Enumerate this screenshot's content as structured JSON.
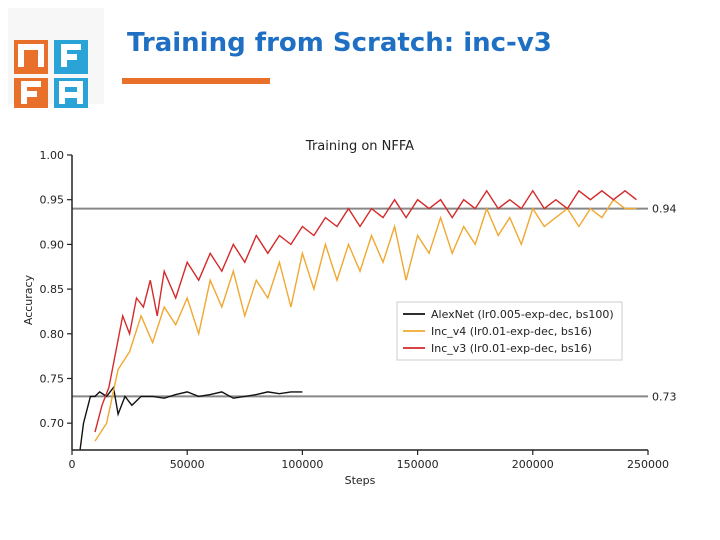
{
  "slide": {
    "title": "Training from Scratch: inc-v3",
    "accent_color": "#e8702a",
    "title_color": "#1f6fc2",
    "logo": {
      "text": "NFFA",
      "colors": [
        "#e8702a",
        "#2aa3d6"
      ]
    }
  },
  "chart_data": {
    "type": "line",
    "title": "Training on NFFA",
    "xlabel": "Steps",
    "ylabel": "Accuracy",
    "xlim": [
      0,
      250000
    ],
    "ylim": [
      0.67,
      1.0
    ],
    "x_ticks": [
      "0",
      "50000",
      "100000",
      "150000",
      "200000",
      "250000"
    ],
    "y_ticks": [
      "0.70",
      "0.75",
      "0.80",
      "0.85",
      "0.90",
      "0.95",
      "1.00"
    ],
    "legend_position": "center-right",
    "series": [
      {
        "name": "AlexNet (lr0.005-exp-dec, bs100)",
        "color": "#111111",
        "x": [
          2000,
          5000,
          8000,
          10000,
          12000,
          15000,
          18000,
          20000,
          23000,
          26000,
          30000,
          35000,
          40000,
          45000,
          50000,
          55000,
          60000,
          65000,
          70000,
          75000,
          80000,
          85000,
          90000,
          95000,
          100000
        ],
        "y": [
          0.64,
          0.7,
          0.73,
          0.73,
          0.735,
          0.73,
          0.74,
          0.71,
          0.73,
          0.72,
          0.73,
          0.73,
          0.728,
          0.732,
          0.735,
          0.73,
          0.732,
          0.735,
          0.728,
          0.73,
          0.732,
          0.735,
          0.733,
          0.735,
          0.735
        ]
      },
      {
        "name": "Inc_v4 (lr0.01-exp-dec, bs16)",
        "color": "#f0a830",
        "x": [
          10000,
          15000,
          20000,
          25000,
          30000,
          35000,
          40000,
          45000,
          50000,
          55000,
          60000,
          65000,
          70000,
          75000,
          80000,
          85000,
          90000,
          95000,
          100000,
          105000,
          110000,
          115000,
          120000,
          125000,
          130000,
          135000,
          140000,
          145000,
          150000,
          155000,
          160000,
          165000,
          170000,
          175000,
          180000,
          185000,
          190000,
          195000,
          200000,
          205000,
          210000,
          215000,
          220000,
          225000,
          230000,
          235000,
          240000,
          245000
        ],
        "y": [
          0.68,
          0.7,
          0.76,
          0.78,
          0.82,
          0.79,
          0.83,
          0.81,
          0.84,
          0.8,
          0.86,
          0.83,
          0.87,
          0.82,
          0.86,
          0.84,
          0.88,
          0.83,
          0.89,
          0.85,
          0.9,
          0.86,
          0.9,
          0.87,
          0.91,
          0.88,
          0.92,
          0.86,
          0.91,
          0.89,
          0.93,
          0.89,
          0.92,
          0.9,
          0.94,
          0.91,
          0.93,
          0.9,
          0.94,
          0.92,
          0.93,
          0.94,
          0.92,
          0.94,
          0.93,
          0.95,
          0.94,
          0.94
        ]
      },
      {
        "name": "Inc_v3 (lr0.01-exp-dec, bs16)",
        "color": "#d42a2a",
        "x": [
          10000,
          13000,
          16000,
          19000,
          22000,
          25000,
          28000,
          31000,
          34000,
          37000,
          40000,
          45000,
          50000,
          55000,
          60000,
          65000,
          70000,
          75000,
          80000,
          85000,
          90000,
          95000,
          100000,
          105000,
          110000,
          115000,
          120000,
          125000,
          130000,
          135000,
          140000,
          145000,
          150000,
          155000,
          160000,
          165000,
          170000,
          175000,
          180000,
          185000,
          190000,
          195000,
          200000,
          205000,
          210000,
          215000,
          220000,
          225000,
          230000,
          235000,
          240000,
          245000
        ],
        "y": [
          0.69,
          0.72,
          0.74,
          0.78,
          0.82,
          0.8,
          0.84,
          0.83,
          0.86,
          0.82,
          0.87,
          0.84,
          0.88,
          0.86,
          0.89,
          0.87,
          0.9,
          0.88,
          0.91,
          0.89,
          0.91,
          0.9,
          0.92,
          0.91,
          0.93,
          0.92,
          0.94,
          0.92,
          0.94,
          0.93,
          0.95,
          0.93,
          0.95,
          0.94,
          0.95,
          0.93,
          0.95,
          0.94,
          0.96,
          0.94,
          0.95,
          0.94,
          0.96,
          0.94,
          0.95,
          0.94,
          0.96,
          0.95,
          0.96,
          0.95,
          0.96,
          0.95
        ]
      }
    ],
    "reference_lines": [
      {
        "value": 0.94,
        "label": "0.94",
        "color": "#888888"
      },
      {
        "value": 0.73,
        "label": "0.73",
        "color": "#888888"
      }
    ]
  }
}
